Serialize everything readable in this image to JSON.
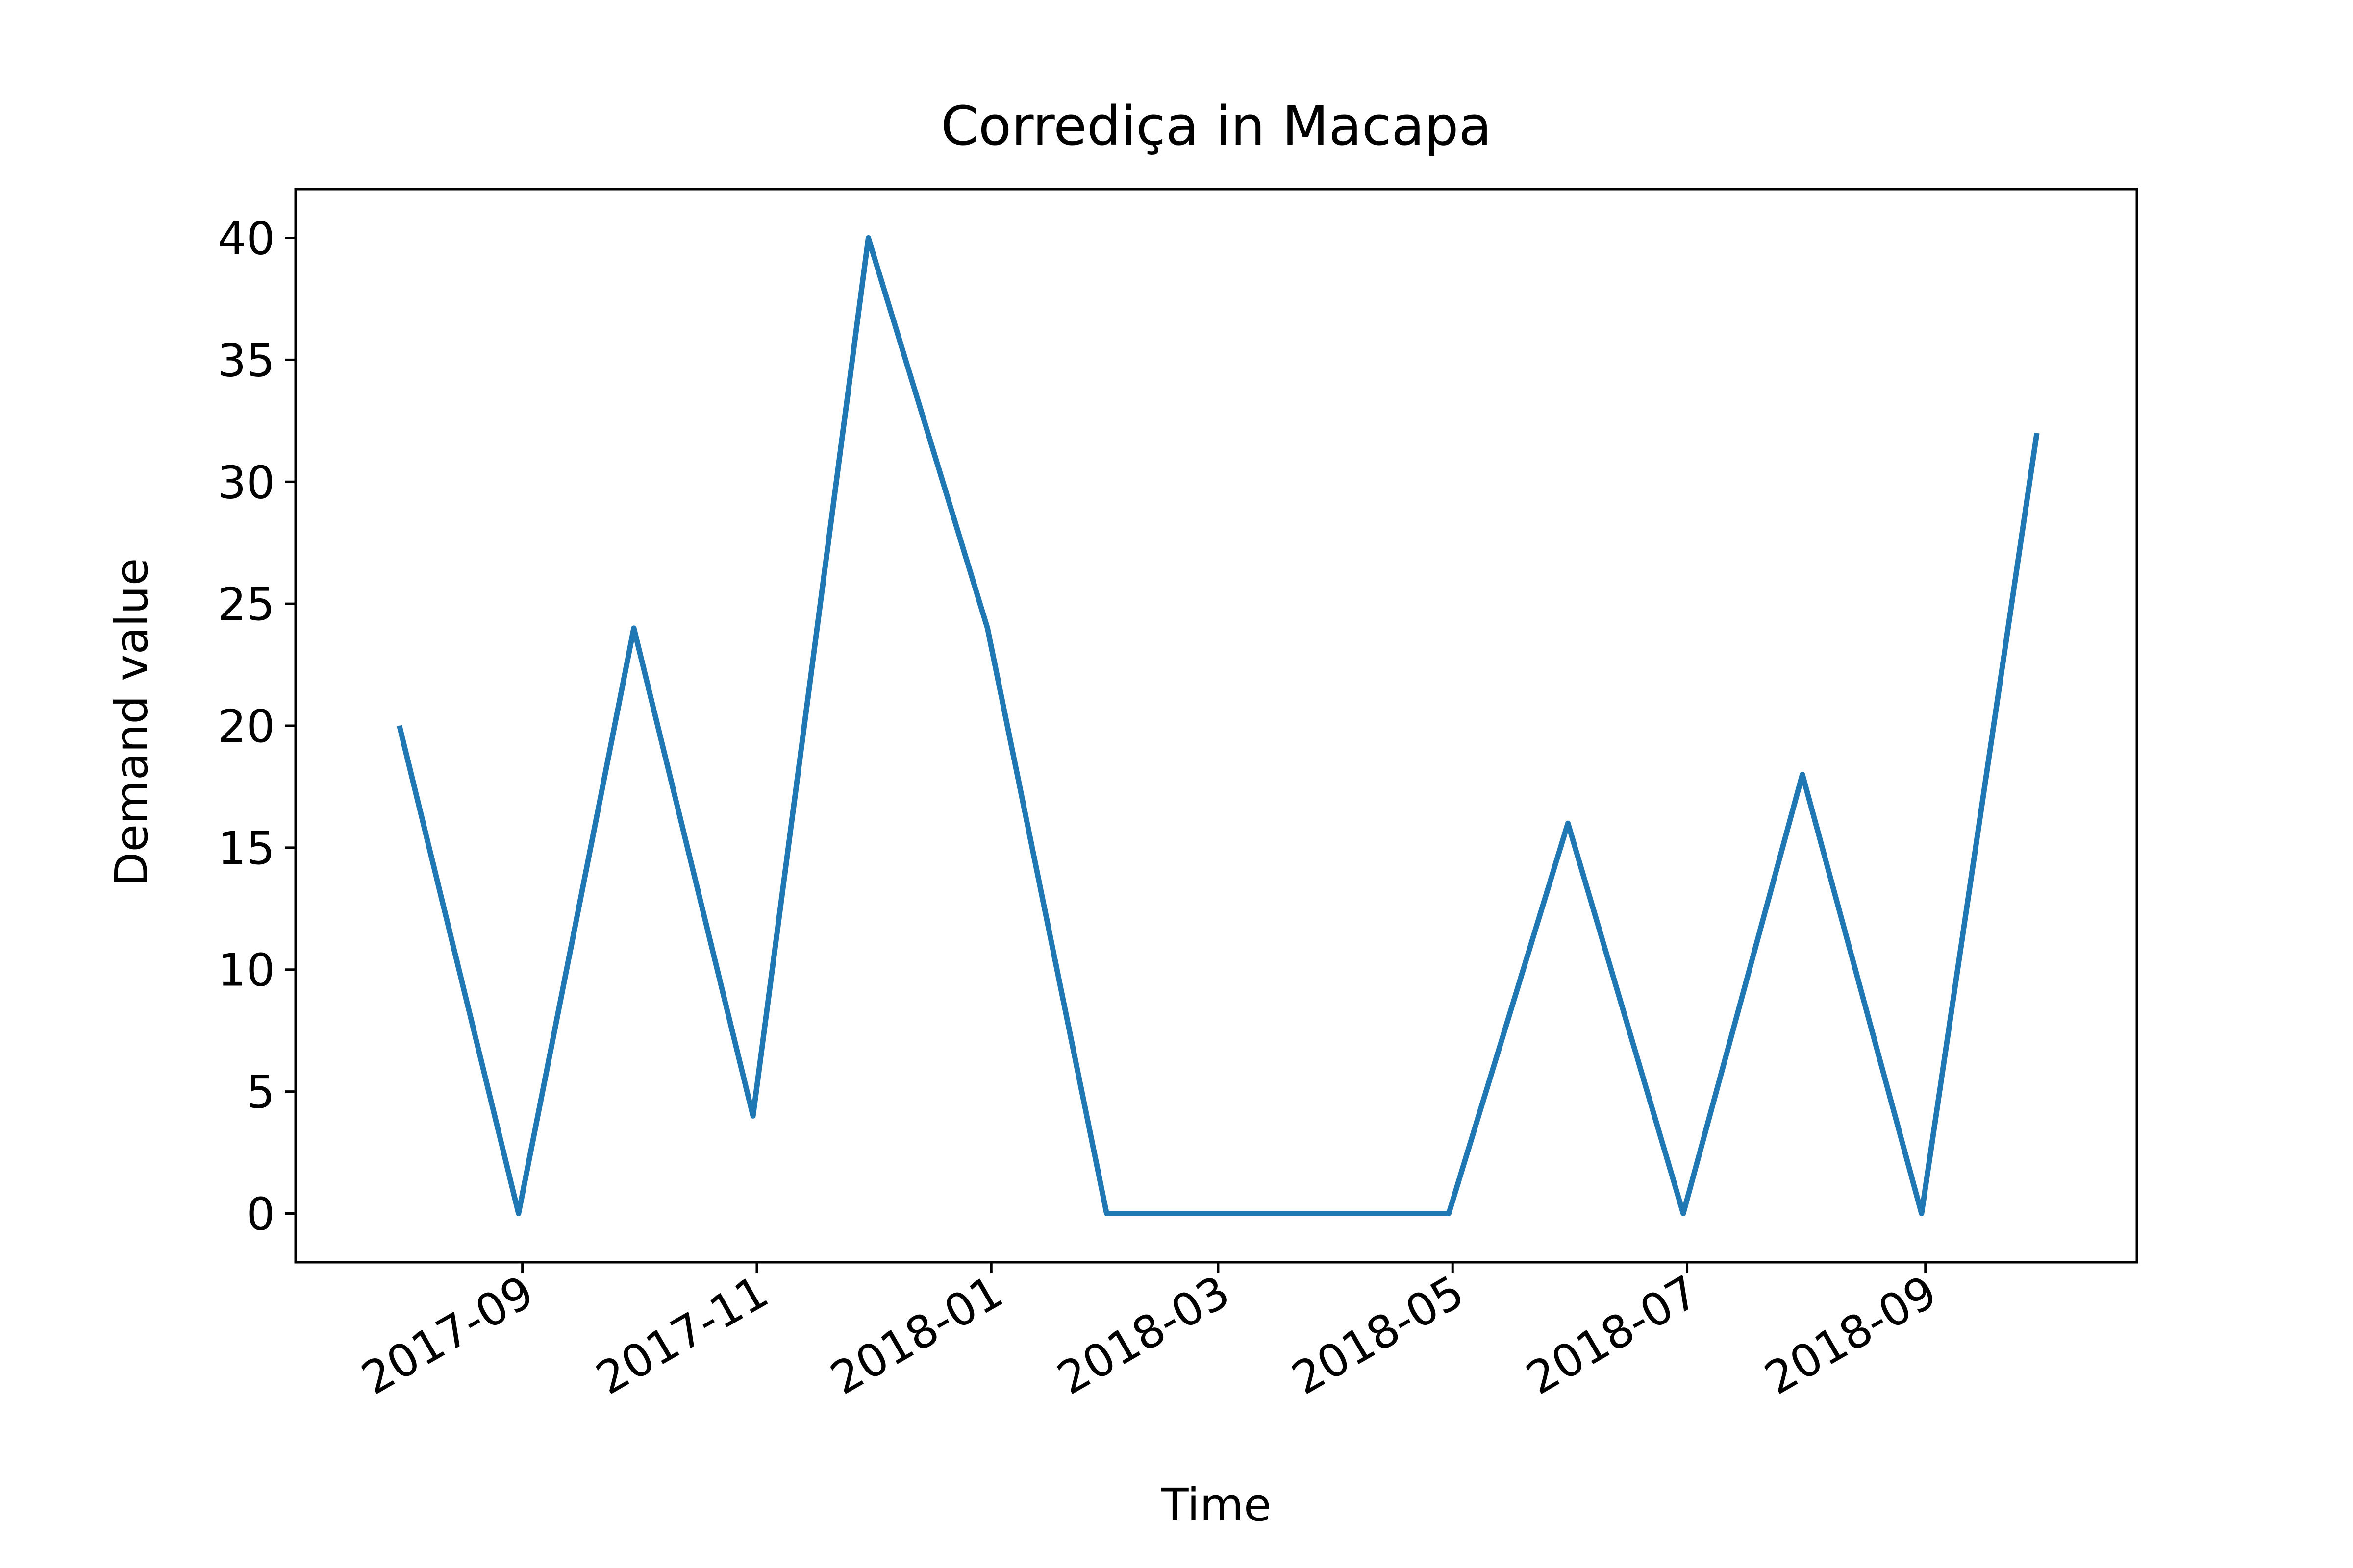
{
  "chart_data": {
    "type": "line",
    "title": "Corrediça in Macapa",
    "xlabel": "Time",
    "ylabel": "Demand value",
    "ylim": [
      -2,
      42
    ],
    "xlim": [
      "2017-07-04",
      "2018-10-26"
    ],
    "yticks": [
      0,
      5,
      10,
      15,
      20,
      25,
      30,
      35,
      40
    ],
    "xticks": [
      "2017-09-01",
      "2017-11-01",
      "2018-01-01",
      "2018-03-01",
      "2018-05-01",
      "2018-07-01",
      "2018-09-01"
    ],
    "xtick_labels": [
      "2017-09",
      "2017-11",
      "2018-01",
      "2018-03",
      "2018-05",
      "2018-07",
      "2018-09"
    ],
    "grid": false,
    "series": [
      {
        "color": "#1f77b4",
        "x": [
          "2017-07-31",
          "2017-08-31",
          "2017-09-30",
          "2017-10-31",
          "2017-11-30",
          "2017-12-31",
          "2018-01-31",
          "2018-02-28",
          "2018-03-31",
          "2018-04-30",
          "2018-05-31",
          "2018-06-30",
          "2018-07-31",
          "2018-08-31",
          "2018-09-30"
        ],
        "y": [
          20,
          0,
          24,
          4,
          40,
          24,
          0,
          0,
          0,
          0,
          16,
          0,
          18,
          0,
          32
        ]
      }
    ]
  }
}
